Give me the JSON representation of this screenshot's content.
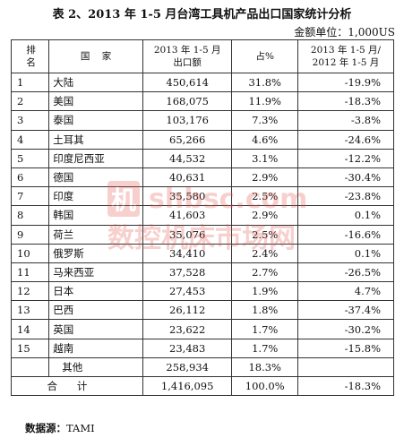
{
  "title": "表 2、2013 年 1-5 月台湾工具机产品出口国家统计分析",
  "unit": "金额单位：1,000US",
  "headers": {
    "rank": [
      "排",
      "名"
    ],
    "country": "国    家",
    "export": [
      "2013 年 1-5 月",
      "出口额"
    ],
    "share": "占%",
    "change": [
      "2013 年 1-5 月/",
      "2012 年 1-5 月"
    ]
  },
  "rows": [
    {
      "rank": "1",
      "country": "大陆",
      "export": "450,614",
      "share": "31.8%",
      "change": "-19.9%"
    },
    {
      "rank": "2",
      "country": "美国",
      "export": "168,075",
      "share": "11.9%",
      "change": "-18.3%"
    },
    {
      "rank": "3",
      "country": "泰国",
      "export": "103,176",
      "share": "7.3%",
      "change": "-3.8%"
    },
    {
      "rank": "4",
      "country": "土耳其",
      "export": "65,266",
      "share": "4.6%",
      "change": "-24.6%"
    },
    {
      "rank": "5",
      "country": "印度尼西亚",
      "export": "44,532",
      "share": "3.1%",
      "change": "-12.2%"
    },
    {
      "rank": "6",
      "country": "德国",
      "export": "40,631",
      "share": "2.9%",
      "change": "-30.4%"
    },
    {
      "rank": "7",
      "country": "印度",
      "export": "35,580",
      "share": "2.5%",
      "change": "-23.8%"
    },
    {
      "rank": "8",
      "country": "韩国",
      "export": "41,603",
      "share": "2.9%",
      "change": "0.1%"
    },
    {
      "rank": "9",
      "country": "荷兰",
      "export": "35,076",
      "share": "2.5%",
      "change": "-16.6%"
    },
    {
      "rank": "10",
      "country": "俄罗斯",
      "export": "34,410",
      "share": "2.4%",
      "change": "0.1%"
    },
    {
      "rank": "11",
      "country": "马来西亚",
      "export": "37,528",
      "share": "2.7%",
      "change": "-26.5%"
    },
    {
      "rank": "12",
      "country": "日本",
      "export": "27,453",
      "share": "1.9%",
      "change": "4.7%"
    },
    {
      "rank": "13",
      "country": "巴西",
      "export": "26,112",
      "share": "1.8%",
      "change": "-37.4%"
    },
    {
      "rank": "14",
      "country": "英国",
      "export": "23,622",
      "share": "1.7%",
      "change": "-30.2%"
    },
    {
      "rank": "15",
      "country": "越南",
      "export": "23,483",
      "share": "1.7%",
      "change": "-15.8%"
    }
  ],
  "other": {
    "country": "其他",
    "export": "258,934",
    "share": "18.3%",
    "change": ""
  },
  "total": {
    "label": "合计",
    "export": "1,416,095",
    "share": "100.0%",
    "change": "-18.3%"
  },
  "source": {
    "label": "数据源：",
    "value": "TAMI"
  },
  "watermark": {
    "mark": "机",
    "domain": "shbsc.com",
    "text": "数控机床市场网",
    "color": "#e35a52"
  }
}
